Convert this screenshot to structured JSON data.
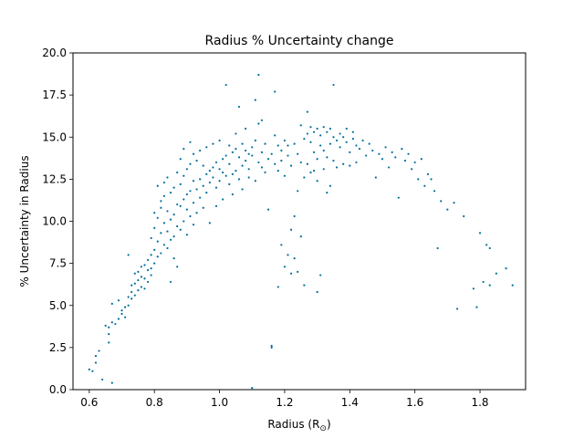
{
  "chart_data": {
    "type": "scatter",
    "title": "Radius % Uncertainty change",
    "xlabel": "Radius (R",
    "xlabel_sub": "⊙",
    "xlabel_close": ")",
    "ylabel": "% Uncertainty in Radius",
    "xlim": [
      0.55,
      1.94
    ],
    "ylim": [
      0.0,
      20.0
    ],
    "xticks": [
      0.6,
      0.8,
      1.0,
      1.2,
      1.4,
      1.6,
      1.8
    ],
    "xtick_labels": [
      "0.6",
      "0.8",
      "1.0",
      "1.2",
      "1.4",
      "1.6",
      "1.8"
    ],
    "yticks": [
      0.0,
      2.5,
      5.0,
      7.5,
      10.0,
      12.5,
      15.0,
      17.5,
      20.0
    ],
    "ytick_labels": [
      "0.0",
      "2.5",
      "5.0",
      "7.5",
      "10.0",
      "12.5",
      "15.0",
      "17.5",
      "20.0"
    ],
    "grid": false,
    "marker_color": "#006f9e",
    "series": [
      {
        "points": [
          [
            0.6,
            1.2
          ],
          [
            0.61,
            1.1
          ],
          [
            0.62,
            1.6
          ],
          [
            0.62,
            2.0
          ],
          [
            0.63,
            2.3
          ],
          [
            0.64,
            0.6
          ],
          [
            0.65,
            3.8
          ],
          [
            0.66,
            3.7
          ],
          [
            0.66,
            2.8
          ],
          [
            0.67,
            0.4
          ],
          [
            0.66,
            3.3
          ],
          [
            0.67,
            4.0
          ],
          [
            0.67,
            5.1
          ],
          [
            0.68,
            3.9
          ],
          [
            0.69,
            4.2
          ],
          [
            0.69,
            5.3
          ],
          [
            0.7,
            4.5
          ],
          [
            0.7,
            4.7
          ],
          [
            0.71,
            4.9
          ],
          [
            0.71,
            4.3
          ],
          [
            0.72,
            5.0
          ],
          [
            0.72,
            5.5
          ],
          [
            0.72,
            8.0
          ],
          [
            0.73,
            5.4
          ],
          [
            0.73,
            5.8
          ],
          [
            0.73,
            6.2
          ],
          [
            0.74,
            5.6
          ],
          [
            0.74,
            6.3
          ],
          [
            0.74,
            6.9
          ],
          [
            0.75,
            5.9
          ],
          [
            0.75,
            6.5
          ],
          [
            0.75,
            7.0
          ],
          [
            0.76,
            6.1
          ],
          [
            0.76,
            6.7
          ],
          [
            0.76,
            7.3
          ],
          [
            0.77,
            6.0
          ],
          [
            0.77,
            6.6
          ],
          [
            0.77,
            7.4
          ],
          [
            0.78,
            6.4
          ],
          [
            0.78,
            7.1
          ],
          [
            0.78,
            7.7
          ],
          [
            0.79,
            6.8
          ],
          [
            0.79,
            7.2
          ],
          [
            0.79,
            8.0
          ],
          [
            0.79,
            9.0
          ],
          [
            0.8,
            7.5
          ],
          [
            0.8,
            8.3
          ],
          [
            0.8,
            9.6
          ],
          [
            0.8,
            10.5
          ],
          [
            0.81,
            7.9
          ],
          [
            0.81,
            8.8
          ],
          [
            0.81,
            10.2
          ],
          [
            0.81,
            12.1
          ],
          [
            0.82,
            8.1
          ],
          [
            0.82,
            9.3
          ],
          [
            0.82,
            10.8
          ],
          [
            0.82,
            11.2
          ],
          [
            0.83,
            8.6
          ],
          [
            0.83,
            9.9
          ],
          [
            0.83,
            11.5
          ],
          [
            0.83,
            12.3
          ],
          [
            0.84,
            8.4
          ],
          [
            0.84,
            9.4
          ],
          [
            0.84,
            10.6
          ],
          [
            0.84,
            12.6
          ],
          [
            0.85,
            8.9
          ],
          [
            0.85,
            10.1
          ],
          [
            0.85,
            11.7
          ],
          [
            0.85,
            6.4
          ],
          [
            0.86,
            9.1
          ],
          [
            0.86,
            10.4
          ],
          [
            0.86,
            12.0
          ],
          [
            0.86,
            7.8
          ],
          [
            0.87,
            9.7
          ],
          [
            0.87,
            11.0
          ],
          [
            0.87,
            12.9
          ],
          [
            0.87,
            7.3
          ],
          [
            0.88,
            9.5
          ],
          [
            0.88,
            10.9
          ],
          [
            0.88,
            12.2
          ],
          [
            0.88,
            13.7
          ],
          [
            0.89,
            10.0
          ],
          [
            0.89,
            11.3
          ],
          [
            0.89,
            12.7
          ],
          [
            0.89,
            14.3
          ],
          [
            0.9,
            9.2
          ],
          [
            0.9,
            10.7
          ],
          [
            0.9,
            11.6
          ],
          [
            0.9,
            13.1
          ],
          [
            0.91,
            10.3
          ],
          [
            0.91,
            11.8
          ],
          [
            0.91,
            13.4
          ],
          [
            0.91,
            14.7
          ],
          [
            0.92,
            9.8
          ],
          [
            0.92,
            11.1
          ],
          [
            0.92,
            12.4
          ],
          [
            0.92,
            14.0
          ],
          [
            0.93,
            10.5
          ],
          [
            0.93,
            11.9
          ],
          [
            0.93,
            13.6
          ],
          [
            0.94,
            11.4
          ],
          [
            0.94,
            12.5
          ],
          [
            0.94,
            14.2
          ],
          [
            0.95,
            10.8
          ],
          [
            0.95,
            12.1
          ],
          [
            0.95,
            13.3
          ],
          [
            0.96,
            11.7
          ],
          [
            0.96,
            12.8
          ],
          [
            0.96,
            14.4
          ],
          [
            0.97,
            12.3
          ],
          [
            0.97,
            13.0
          ],
          [
            0.97,
            9.9
          ],
          [
            0.98,
            12.6
          ],
          [
            0.98,
            13.2
          ],
          [
            0.98,
            14.6
          ],
          [
            0.99,
            12.0
          ],
          [
            0.99,
            13.5
          ],
          [
            0.99,
            10.9
          ],
          [
            1.0,
            12.4
          ],
          [
            1.0,
            13.1
          ],
          [
            1.0,
            14.8
          ],
          [
            1.01,
            12.9
          ],
          [
            1.01,
            13.7
          ],
          [
            1.01,
            11.3
          ],
          [
            1.02,
            12.7
          ],
          [
            1.02,
            13.9
          ],
          [
            1.02,
            18.1
          ],
          [
            1.03,
            12.2
          ],
          [
            1.03,
            13.4
          ],
          [
            1.03,
            14.5
          ],
          [
            1.04,
            12.8
          ],
          [
            1.04,
            14.1
          ],
          [
            1.04,
            11.6
          ],
          [
            1.05,
            13.0
          ],
          [
            1.05,
            14.3
          ],
          [
            1.05,
            15.2
          ],
          [
            1.06,
            12.5
          ],
          [
            1.06,
            13.8
          ],
          [
            1.06,
            16.8
          ],
          [
            1.07,
            13.3
          ],
          [
            1.07,
            14.6
          ],
          [
            1.07,
            11.9
          ],
          [
            1.08,
            13.6
          ],
          [
            1.08,
            14.2
          ],
          [
            1.08,
            15.5
          ],
          [
            1.09,
            12.6
          ],
          [
            1.09,
            14.0
          ],
          [
            1.09,
            13.1
          ],
          [
            1.1,
            13.9
          ],
          [
            1.1,
            14.4
          ],
          [
            1.1,
            0.1
          ],
          [
            1.11,
            12.4
          ],
          [
            1.11,
            14.8
          ],
          [
            1.11,
            17.2
          ],
          [
            1.12,
            13.5
          ],
          [
            1.12,
            15.8
          ],
          [
            1.12,
            18.7
          ],
          [
            1.13,
            14.1
          ],
          [
            1.13,
            13.2
          ],
          [
            1.13,
            16.0
          ],
          [
            1.14,
            12.9
          ],
          [
            1.14,
            14.6
          ],
          [
            1.15,
            13.7
          ],
          [
            1.15,
            10.7
          ],
          [
            1.16,
            14.0
          ],
          [
            1.16,
            2.5
          ],
          [
            1.16,
            2.6
          ],
          [
            1.17,
            13.4
          ],
          [
            1.17,
            15.1
          ],
          [
            1.17,
            17.7
          ],
          [
            1.18,
            13.0
          ],
          [
            1.18,
            14.5
          ],
          [
            1.18,
            6.1
          ],
          [
            1.19,
            14.2
          ],
          [
            1.19,
            13.6
          ],
          [
            1.19,
            8.6
          ],
          [
            1.2,
            14.8
          ],
          [
            1.2,
            12.7
          ],
          [
            1.2,
            7.3
          ],
          [
            1.21,
            13.9
          ],
          [
            1.21,
            8.0
          ],
          [
            1.21,
            14.5
          ],
          [
            1.22,
            13.3
          ],
          [
            1.22,
            6.9
          ],
          [
            1.22,
            9.5
          ],
          [
            1.23,
            14.6
          ],
          [
            1.23,
            7.8
          ],
          [
            1.23,
            10.3
          ],
          [
            1.24,
            14.0
          ],
          [
            1.24,
            11.8
          ],
          [
            1.24,
            7.0
          ],
          [
            1.25,
            15.7
          ],
          [
            1.25,
            13.5
          ],
          [
            1.25,
            9.1
          ],
          [
            1.26,
            14.9
          ],
          [
            1.26,
            12.6
          ],
          [
            1.26,
            6.2
          ],
          [
            1.27,
            16.5
          ],
          [
            1.27,
            15.2
          ],
          [
            1.27,
            13.4
          ],
          [
            1.28,
            14.7
          ],
          [
            1.28,
            15.6
          ],
          [
            1.28,
            12.9
          ],
          [
            1.29,
            15.3
          ],
          [
            1.29,
            14.1
          ],
          [
            1.29,
            13.0
          ],
          [
            1.3,
            15.5
          ],
          [
            1.3,
            13.7
          ],
          [
            1.3,
            12.4
          ],
          [
            1.3,
            5.8
          ],
          [
            1.31,
            15.1
          ],
          [
            1.31,
            14.5
          ],
          [
            1.31,
            6.8
          ],
          [
            1.32,
            15.6
          ],
          [
            1.32,
            14.2
          ],
          [
            1.32,
            13.1
          ],
          [
            1.33,
            15.3
          ],
          [
            1.33,
            13.8
          ],
          [
            1.33,
            11.7
          ],
          [
            1.34,
            15.5
          ],
          [
            1.34,
            14.6
          ],
          [
            1.34,
            12.1
          ],
          [
            1.35,
            15.0
          ],
          [
            1.35,
            13.6
          ],
          [
            1.35,
            18.1
          ],
          [
            1.36,
            14.8
          ],
          [
            1.36,
            13.2
          ],
          [
            1.37,
            15.2
          ],
          [
            1.37,
            14.4
          ],
          [
            1.38,
            15.0
          ],
          [
            1.38,
            13.4
          ],
          [
            1.39,
            14.7
          ],
          [
            1.39,
            15.5
          ],
          [
            1.4,
            14.1
          ],
          [
            1.4,
            13.3
          ],
          [
            1.41,
            14.9
          ],
          [
            1.41,
            15.3
          ],
          [
            1.42,
            14.5
          ],
          [
            1.42,
            13.5
          ],
          [
            1.43,
            14.3
          ],
          [
            1.44,
            14.8
          ],
          [
            1.45,
            13.9
          ],
          [
            1.46,
            14.6
          ],
          [
            1.47,
            14.2
          ],
          [
            1.48,
            12.6
          ],
          [
            1.49,
            14.0
          ],
          [
            1.5,
            13.7
          ],
          [
            1.51,
            14.4
          ],
          [
            1.52,
            13.2
          ],
          [
            1.53,
            14.1
          ],
          [
            1.54,
            13.8
          ],
          [
            1.55,
            11.4
          ],
          [
            1.56,
            14.3
          ],
          [
            1.57,
            13.6
          ],
          [
            1.58,
            14.0
          ],
          [
            1.59,
            13.1
          ],
          [
            1.6,
            13.5
          ],
          [
            1.61,
            12.5
          ],
          [
            1.62,
            13.7
          ],
          [
            1.63,
            12.1
          ],
          [
            1.64,
            12.8
          ],
          [
            1.65,
            12.5
          ],
          [
            1.66,
            11.8
          ],
          [
            1.67,
            8.4
          ],
          [
            1.68,
            11.2
          ],
          [
            1.7,
            10.7
          ],
          [
            1.72,
            11.1
          ],
          [
            1.73,
            4.8
          ],
          [
            1.75,
            10.3
          ],
          [
            1.78,
            6.0
          ],
          [
            1.79,
            4.9
          ],
          [
            1.8,
            9.3
          ],
          [
            1.81,
            6.4
          ],
          [
            1.82,
            8.6
          ],
          [
            1.83,
            8.4
          ],
          [
            1.83,
            6.2
          ],
          [
            1.85,
            6.9
          ],
          [
            1.88,
            7.2
          ],
          [
            1.9,
            6.2
          ]
        ]
      }
    ]
  }
}
